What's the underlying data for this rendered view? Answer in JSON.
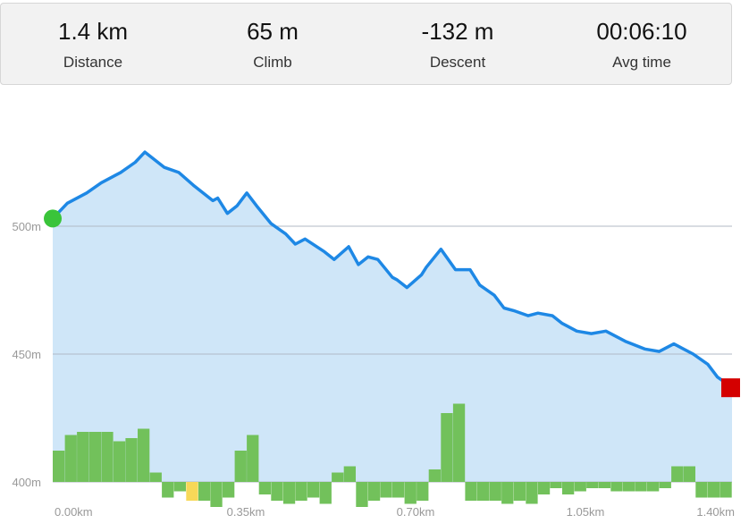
{
  "stats": {
    "distance": {
      "value": "1.4 km",
      "label": "Distance"
    },
    "climb": {
      "value": "65 m",
      "label": "Climb"
    },
    "descent": {
      "value": "-132 m",
      "label": "Descent"
    },
    "avg_time": {
      "value": "00:06:10",
      "label": "Avg time"
    }
  },
  "colors": {
    "line": "#1e88e5",
    "fill": "#cfe6f8",
    "grid": "#b0b9c6",
    "grade_up": "#72c15b",
    "grade_down": "#72c15b",
    "grade_highlight": "#f7d858",
    "start_marker": "#3ac43a",
    "end_marker": "#d40000"
  },
  "chart_data": {
    "type": "area",
    "xlabel": "",
    "ylabel": "",
    "xlim": [
      0,
      1.4
    ],
    "ylim": [
      400,
      550
    ],
    "x_ticks": [
      {
        "value": 0.0,
        "label": "0.00km"
      },
      {
        "value": 0.35,
        "label": "0.35km"
      },
      {
        "value": 0.7,
        "label": "0.70km"
      },
      {
        "value": 1.05,
        "label": "1.05km"
      },
      {
        "value": 1.4,
        "label": "1.40km"
      }
    ],
    "y_ticks": [
      {
        "value": 400,
        "label": "400m"
      },
      {
        "value": 450,
        "label": "450m"
      },
      {
        "value": 500,
        "label": "500m"
      }
    ],
    "grid": true,
    "elevation": {
      "x": [
        0.0,
        0.03,
        0.07,
        0.1,
        0.14,
        0.17,
        0.19,
        0.23,
        0.26,
        0.29,
        0.33,
        0.34,
        0.36,
        0.38,
        0.4,
        0.42,
        0.45,
        0.48,
        0.5,
        0.52,
        0.56,
        0.58,
        0.61,
        0.63,
        0.65,
        0.67,
        0.7,
        0.71,
        0.73,
        0.76,
        0.77,
        0.8,
        0.83,
        0.86,
        0.88,
        0.91,
        0.93,
        0.95,
        0.98,
        1.0,
        1.03,
        1.05,
        1.08,
        1.11,
        1.14,
        1.18,
        1.22,
        1.25,
        1.28,
        1.32,
        1.35,
        1.37,
        1.4
      ],
      "y": [
        503,
        509,
        513,
        517,
        521,
        525,
        529,
        523,
        521,
        516,
        510,
        511,
        505,
        508,
        513,
        508,
        501,
        497,
        493,
        495,
        490,
        487,
        492,
        485,
        488,
        487,
        480,
        479,
        476,
        481,
        484,
        491,
        483,
        483,
        477,
        473,
        468,
        467,
        465,
        466,
        465,
        462,
        459,
        458,
        459,
        455,
        452,
        451,
        454,
        450,
        446,
        441,
        437
      ]
    },
    "grade_bars": {
      "x": [
        0.0,
        0.025,
        0.05,
        0.075,
        0.1,
        0.125,
        0.15,
        0.175,
        0.2,
        0.225,
        0.25,
        0.275,
        0.3,
        0.325,
        0.35,
        0.375,
        0.4,
        0.425,
        0.45,
        0.475,
        0.5,
        0.525,
        0.55,
        0.575,
        0.6,
        0.625,
        0.65,
        0.675,
        0.7,
        0.725,
        0.75,
        0.775,
        0.8,
        0.825,
        0.85,
        0.875,
        0.9,
        0.925,
        0.95,
        0.975,
        1.0,
        1.025,
        1.05,
        1.075,
        1.1,
        1.125,
        1.15,
        1.175,
        1.2,
        1.225,
        1.25,
        1.275,
        1.3,
        1.325,
        1.35,
        1.375
      ],
      "grade": [
        5,
        7.5,
        8,
        8,
        8,
        6.5,
        7,
        8.5,
        1.5,
        -2.5,
        -1.5,
        -3,
        -3,
        -4,
        -2.5,
        5,
        7.5,
        -2,
        -3,
        -3.5,
        -3,
        -2.5,
        -3.5,
        1.5,
        2.5,
        -4,
        -3,
        -2.5,
        -2.5,
        -3.5,
        -3,
        2,
        11,
        12.5,
        -3,
        -3,
        -3,
        -3.5,
        -3,
        -3.5,
        -2,
        -1,
        -2,
        -1.5,
        -1,
        -1,
        -1.5,
        -1.5,
        -1.5,
        -1.5,
        -1,
        2.5,
        2.5,
        -2.5,
        -2.5,
        -2.5
      ],
      "highlight_index": 11
    },
    "markers": {
      "start": {
        "x": 0.0,
        "y": 503
      },
      "end": {
        "x": 1.4,
        "y": 437
      }
    }
  }
}
